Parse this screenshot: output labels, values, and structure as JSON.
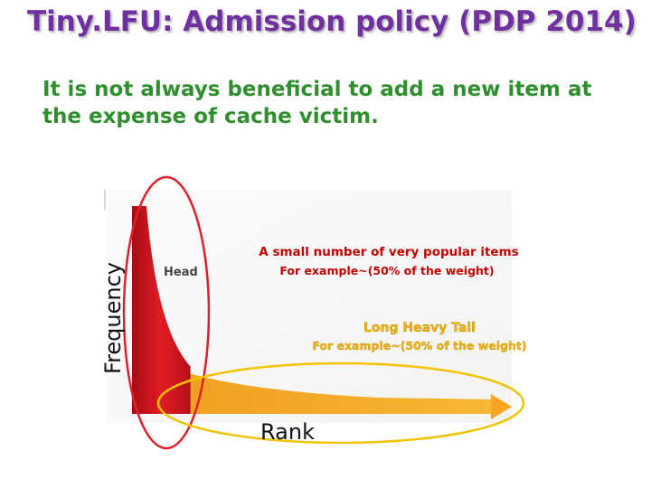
{
  "slide": {
    "title": "Tiny.LFU: Admission policy (PDP 2014)",
    "body": "It is not always beneficial to add a new item at the expense of cache victim."
  },
  "diagram": {
    "y_axis_label": "Frequency",
    "x_axis_label": "Rank",
    "head_label": "Head",
    "head_caption": "A small number of very popular items",
    "head_example": "For example~(50% of the weight)",
    "tail_caption": "Long Heavy Tail",
    "tail_example": "For example~(50% of the weight)",
    "colors": {
      "head_fill": "#d0121b",
      "tail_fill": "#f5a623",
      "highlight_outline": "#e0202a",
      "tail_outline": "#f2c300",
      "head_caption": "#c00000",
      "head_example": "#c00000",
      "tail_caption": "#f2b400",
      "tail_example": "#f2b400",
      "title": "#7030a0",
      "body_text": "#2f8f2f"
    }
  }
}
